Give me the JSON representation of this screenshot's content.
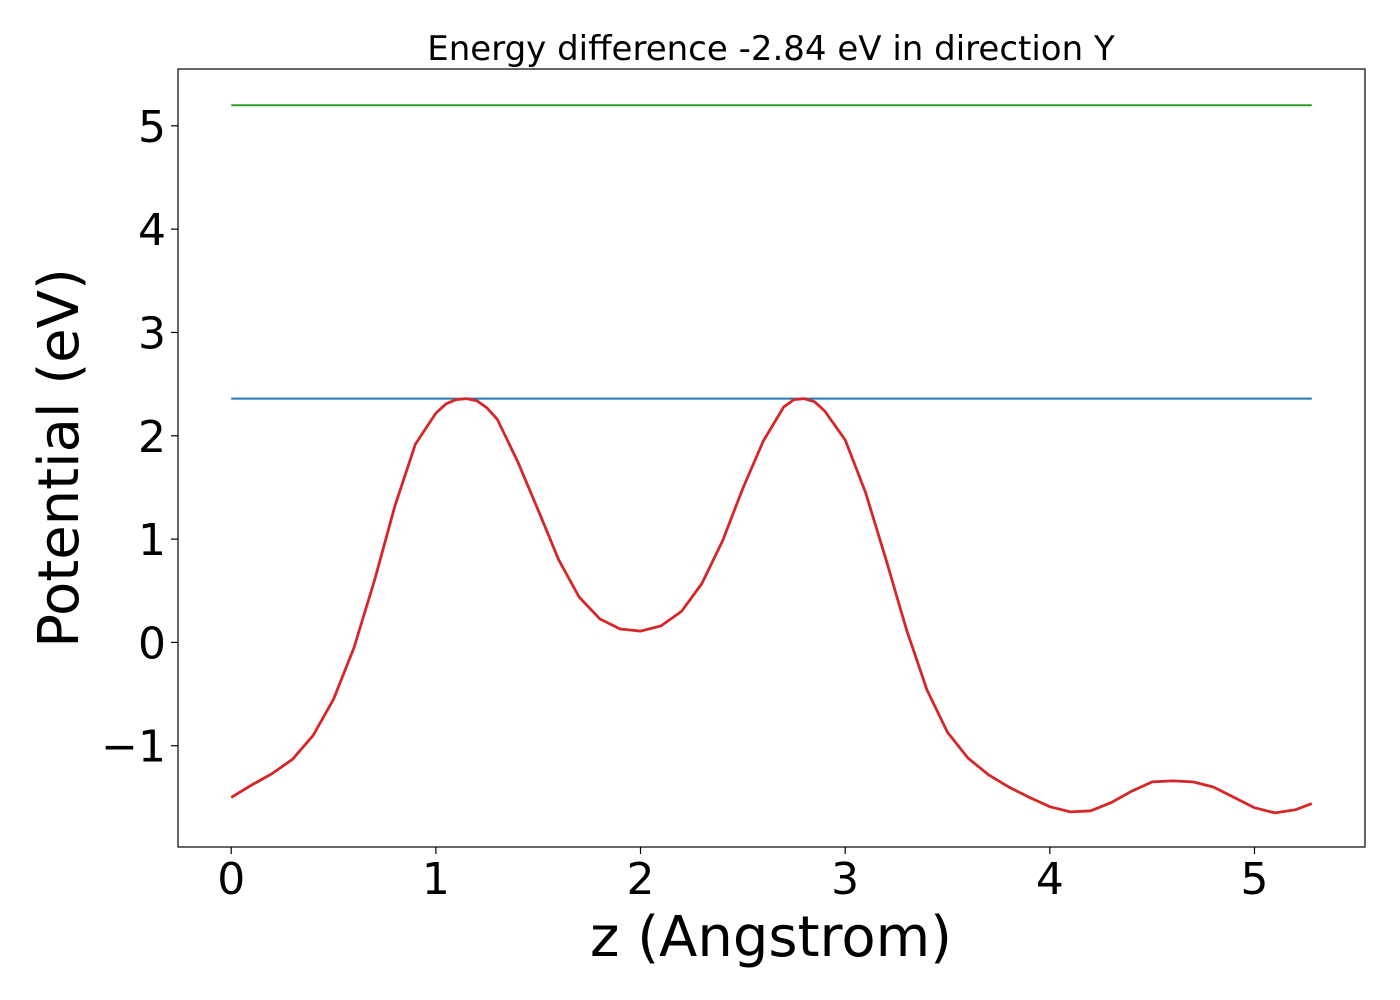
{
  "chart_data": {
    "type": "line",
    "title": "Energy difference -2.84 eV in direction Y",
    "xlabel": "z (Angstrom)",
    "ylabel": "Potential (eV)",
    "xlim": [
      -0.26,
      5.54
    ],
    "ylim": [
      -1.98,
      5.55
    ],
    "xticks": [
      0,
      1,
      2,
      3,
      4,
      5
    ],
    "xtick_labels": [
      "0",
      "1",
      "2",
      "3",
      "4",
      "5"
    ],
    "yticks": [
      -1,
      0,
      1,
      2,
      3,
      4,
      5
    ],
    "ytick_labels": [
      "−1",
      "0",
      "1",
      "2",
      "3",
      "4",
      "5"
    ],
    "grid": false,
    "series": [
      {
        "color": "#2ca02c",
        "x": [
          0,
          5.28
        ],
        "y": [
          5.2,
          5.2
        ]
      },
      {
        "color": "#1f77b4",
        "x": [
          0,
          5.28
        ],
        "y": [
          2.36,
          2.36
        ]
      },
      {
        "color": "#d62728",
        "x": [
          0.0,
          0.1,
          0.2,
          0.3,
          0.4,
          0.5,
          0.6,
          0.7,
          0.8,
          0.9,
          1.0,
          1.05,
          1.1,
          1.15,
          1.2,
          1.25,
          1.3,
          1.4,
          1.5,
          1.6,
          1.7,
          1.8,
          1.9,
          2.0,
          2.1,
          2.2,
          2.3,
          2.4,
          2.5,
          2.6,
          2.7,
          2.75,
          2.8,
          2.85,
          2.9,
          3.0,
          3.1,
          3.2,
          3.3,
          3.4,
          3.5,
          3.6,
          3.7,
          3.8,
          3.9,
          4.0,
          4.1,
          4.2,
          4.3,
          4.4,
          4.5,
          4.6,
          4.7,
          4.8,
          4.9,
          5.0,
          5.1,
          5.2,
          5.28
        ],
        "y": [
          -1.5,
          -1.38,
          -1.27,
          -1.13,
          -0.9,
          -0.55,
          -0.05,
          0.6,
          1.32,
          1.92,
          2.22,
          2.31,
          2.35,
          2.36,
          2.34,
          2.27,
          2.16,
          1.75,
          1.28,
          0.8,
          0.44,
          0.23,
          0.13,
          0.11,
          0.16,
          0.3,
          0.57,
          0.98,
          1.49,
          1.95,
          2.28,
          2.35,
          2.36,
          2.33,
          2.24,
          1.96,
          1.45,
          0.8,
          0.12,
          -0.46,
          -0.87,
          -1.12,
          -1.28,
          -1.4,
          -1.5,
          -1.59,
          -1.64,
          -1.63,
          -1.55,
          -1.44,
          -1.35,
          -1.34,
          -1.35,
          -1.4,
          -1.5,
          -1.6,
          -1.65,
          -1.62,
          -1.56
        ]
      }
    ]
  }
}
